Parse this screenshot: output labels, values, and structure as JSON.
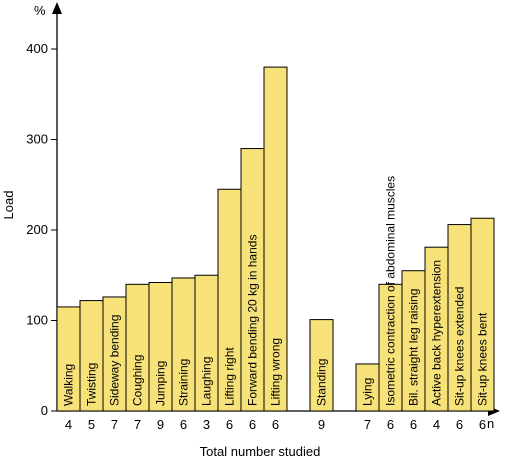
{
  "chart_data": {
    "type": "bar",
    "ylabel": "Load",
    "y_unit": "%",
    "xlabel": "Total number studied",
    "x_unit": "n",
    "ylim": [
      0,
      400
    ],
    "yticks": [
      0,
      100,
      200,
      300,
      400
    ],
    "grid": false,
    "bar_color": "#f7e27a",
    "categories": [
      "Walking",
      "Twisting",
      "Sideway bending",
      "Coughing",
      "Jumping",
      "Straining",
      "Laughing",
      "Lifting right",
      "Forward bending 20 kg in hands",
      "Lifting wrong",
      "Standing",
      "Lying",
      "Isometric contraction of abdominal muscles",
      "Bil. straight leg raising",
      "Active back hyperextension",
      "Sit-up knees extended",
      "Sit-up knees bent"
    ],
    "values": [
      115,
      122,
      126,
      140,
      142,
      147,
      150,
      245,
      290,
      380,
      101,
      52,
      140,
      155,
      181,
      206,
      213
    ],
    "n": [
      "4",
      "5",
      "7",
      "7",
      "9",
      "6",
      "3",
      "6",
      "6",
      "6",
      "9",
      "7",
      "6",
      "6",
      "4",
      "6",
      "6"
    ],
    "groups": [
      10,
      1,
      6
    ]
  }
}
